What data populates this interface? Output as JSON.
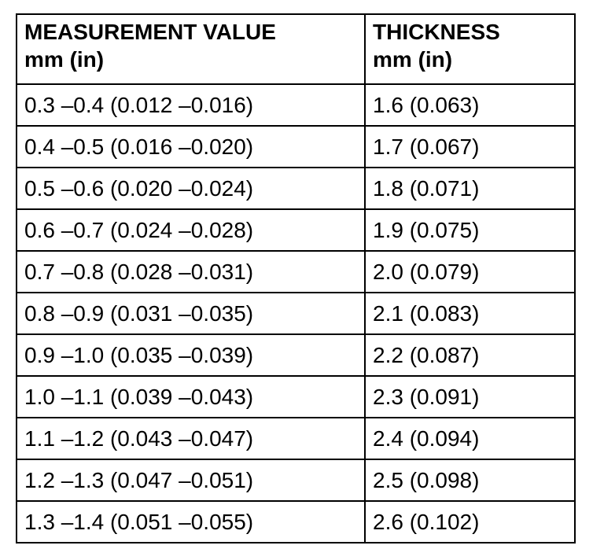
{
  "table": {
    "header": [
      [
        "MEASUREMENT VALUE",
        "mm (in)"
      ],
      [
        "THICKNESS",
        "mm (in)"
      ]
    ],
    "rows": [
      [
        "0.3 –0.4 (0.012 –0.016)",
        "1.6 (0.063)"
      ],
      [
        "0.4 –0.5 (0.016 –0.020)",
        "1.7 (0.067)"
      ],
      [
        "0.5 –0.6 (0.020 –0.024)",
        "1.8 (0.071)"
      ],
      [
        "0.6 –0.7 (0.024 –0.028)",
        "1.9 (0.075)"
      ],
      [
        "0.7 –0.8 (0.028 –0.031)",
        "2.0 (0.079)"
      ],
      [
        "0.8 –0.9 (0.031 –0.035)",
        "2.1 (0.083)"
      ],
      [
        "0.9 –1.0 (0.035 –0.039)",
        "2.2 (0.087)"
      ],
      [
        "1.0 –1.1 (0.039 –0.043)",
        "2.3 (0.091)"
      ],
      [
        "1.1 –1.2 (0.043 –0.047)",
        "2.4 (0.094)"
      ],
      [
        "1.2 –1.3 (0.047 –0.051)",
        "2.5 (0.098)"
      ],
      [
        "1.3 –1.4 (0.051 –0.055)",
        "2.6 (0.102)"
      ]
    ]
  }
}
